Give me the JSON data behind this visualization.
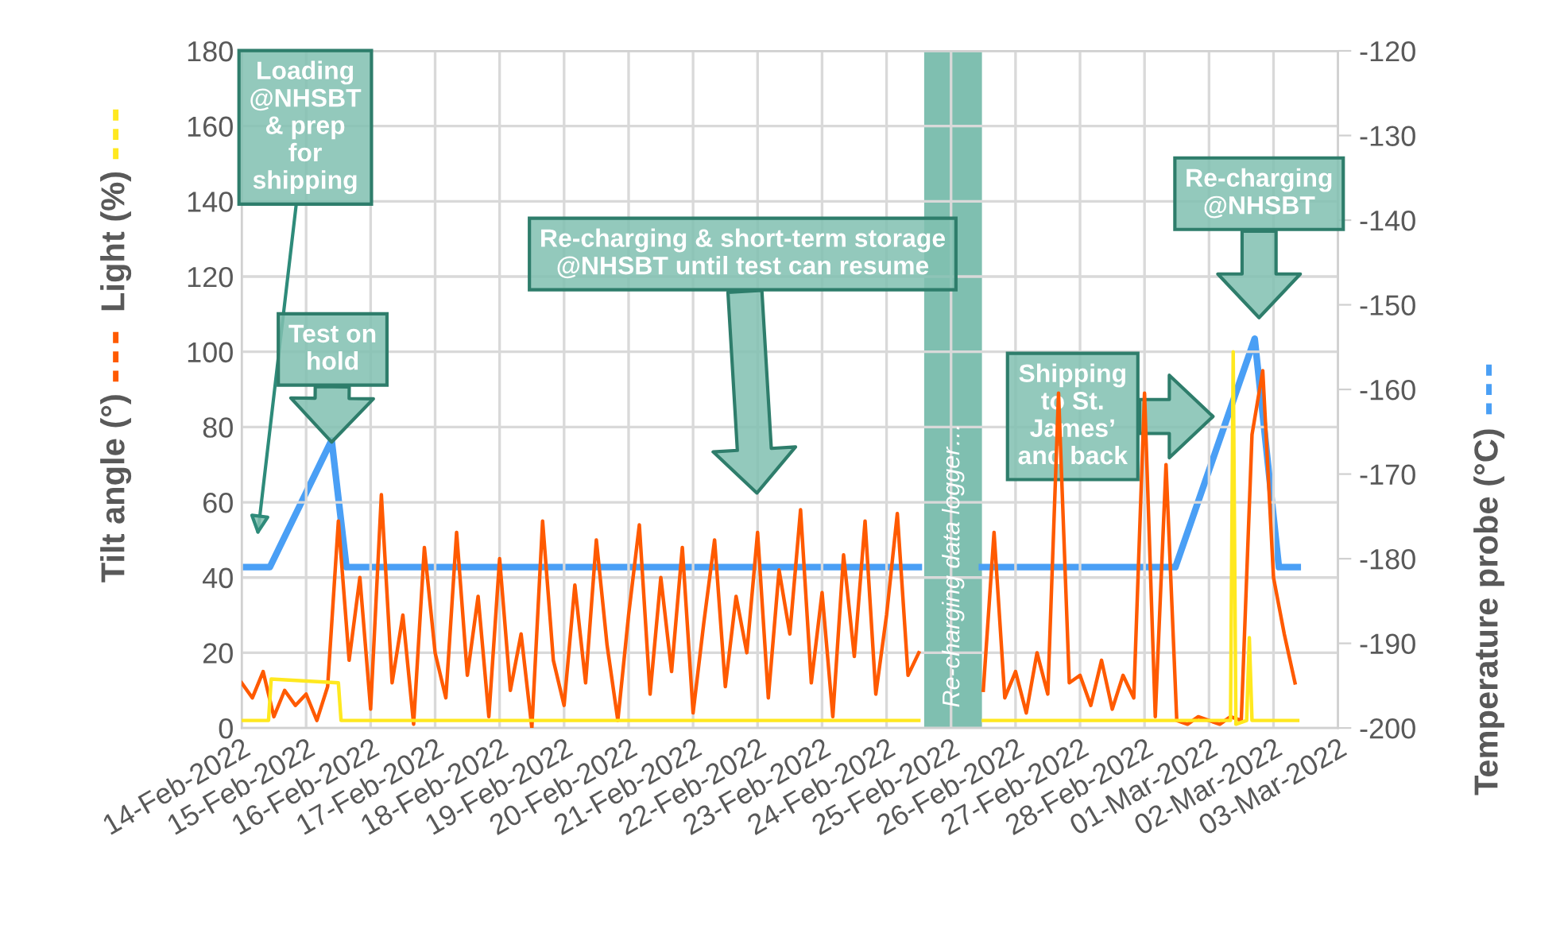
{
  "chart_data": {
    "type": "line",
    "xlim": [
      "2022-02-14",
      "2022-03-03"
    ],
    "xticks": [
      {
        "value": "2022-02-14",
        "label": "14-Feb-2022"
      },
      {
        "value": "2022-02-15",
        "label": "15-Feb-2022"
      },
      {
        "value": "2022-02-16",
        "label": "16-Feb-2022"
      },
      {
        "value": "2022-02-17",
        "label": "17-Feb-2022"
      },
      {
        "value": "2022-02-18",
        "label": "18-Feb-2022"
      },
      {
        "value": "2022-02-19",
        "label": "19-Feb-2022"
      },
      {
        "value": "2022-02-20",
        "label": "20-Feb-2022"
      },
      {
        "value": "2022-02-21",
        "label": "21-Feb-2022"
      },
      {
        "value": "2022-02-22",
        "label": "22-Feb-2022"
      },
      {
        "value": "2022-02-23",
        "label": "23-Feb-2022"
      },
      {
        "value": "2022-02-24",
        "label": "24-Feb-2022"
      },
      {
        "value": "2022-02-25",
        "label": "25-Feb-2022"
      },
      {
        "value": "2022-02-26",
        "label": "26-Feb-2022"
      },
      {
        "value": "2022-02-27",
        "label": "27-Feb-2022"
      },
      {
        "value": "2022-02-28",
        "label": "28-Feb-2022"
      },
      {
        "value": "2022-03-01",
        "label": "01-Mar-2022"
      },
      {
        "value": "2022-03-02",
        "label": "02-Mar-2022"
      },
      {
        "value": "2022-03-03",
        "label": "03-Mar-2022"
      }
    ],
    "ylim": [
      0,
      180
    ],
    "yticks": [
      0,
      20,
      40,
      60,
      80,
      100,
      120,
      140,
      160,
      180
    ],
    "y2lim": [
      -200,
      -120
    ],
    "y2ticks": [
      -200,
      -190,
      -180,
      -170,
      -160,
      -150,
      -140,
      -130,
      -120
    ],
    "grid": true,
    "legend": "left",
    "line_style": "solid",
    "marker": "none",
    "series": [
      {
        "name": "Tilt angle (°)",
        "color": "#ff5a00",
        "x": [
          "2022-02-14T00:00",
          "2022-02-14T04:00",
          "2022-02-14T08:00",
          "2022-02-14T12:00",
          "2022-02-14T16:00",
          "2022-02-14T20:00",
          "2022-02-15T00:00",
          "2022-02-15T04:00",
          "2022-02-15T08:00",
          "2022-02-15T12:00",
          "2022-02-15T16:00",
          "2022-02-15T20:00",
          "2022-02-16T00:00",
          "2022-02-16T04:00",
          "2022-02-16T08:00",
          "2022-02-16T12:00",
          "2022-02-16T16:00",
          "2022-02-16T20:00",
          "2022-02-17T00:00",
          "2022-02-17T04:00",
          "2022-02-17T08:00",
          "2022-02-17T12:00",
          "2022-02-17T16:00",
          "2022-02-17T20:00",
          "2022-02-18T00:00",
          "2022-02-18T04:00",
          "2022-02-18T08:00",
          "2022-02-18T12:00",
          "2022-02-18T16:00",
          "2022-02-18T20:00",
          "2022-02-19T00:00",
          "2022-02-19T04:00",
          "2022-02-19T08:00",
          "2022-02-19T12:00",
          "2022-02-19T16:00",
          "2022-02-19T20:00",
          "2022-02-20T00:00",
          "2022-02-20T04:00",
          "2022-02-20T08:00",
          "2022-02-20T12:00",
          "2022-02-20T16:00",
          "2022-02-20T20:00",
          "2022-02-21T00:00",
          "2022-02-21T04:00",
          "2022-02-21T08:00",
          "2022-02-21T12:00",
          "2022-02-21T16:00",
          "2022-02-21T20:00",
          "2022-02-22T00:00",
          "2022-02-22T04:00",
          "2022-02-22T08:00",
          "2022-02-22T12:00",
          "2022-02-22T16:00",
          "2022-02-22T20:00",
          "2022-02-23T00:00",
          "2022-02-23T04:00",
          "2022-02-23T08:00",
          "2022-02-23T12:00",
          "2022-02-23T16:00",
          "2022-02-23T20:00",
          "2022-02-24T00:00",
          "2022-02-24T04:00",
          "2022-02-24T08:00",
          "2022-02-24T12:00",
          "2022-02-25T00:00",
          "2022-02-25T12:00",
          "2022-02-25T16:00",
          "2022-02-25T20:00",
          "2022-02-26T00:00",
          "2022-02-26T04:00",
          "2022-02-26T08:00",
          "2022-02-26T12:00",
          "2022-02-26T16:00",
          "2022-02-26T20:00",
          "2022-02-27T00:00",
          "2022-02-27T04:00",
          "2022-02-27T08:00",
          "2022-02-27T12:00",
          "2022-02-27T16:00",
          "2022-02-27T20:00",
          "2022-02-28T00:00",
          "2022-02-28T04:00",
          "2022-02-28T08:00",
          "2022-02-28T12:00",
          "2022-02-28T16:00",
          "2022-02-28T20:00",
          "2022-03-01T00:00",
          "2022-03-01T04:00",
          "2022-03-01T08:00",
          "2022-03-01T12:00",
          "2022-03-01T16:00",
          "2022-03-01T20:00",
          "2022-03-02T00:00",
          "2022-03-02T04:00",
          "2022-03-02T08:00"
        ],
        "values": [
          12,
          8,
          15,
          3,
          10,
          6,
          9,
          2,
          11,
          55,
          18,
          40,
          5,
          62,
          12,
          30,
          1,
          48,
          20,
          8,
          52,
          14,
          35,
          3,
          45,
          10,
          25,
          0,
          55,
          18,
          6,
          38,
          12,
          50,
          22,
          2,
          30,
          54,
          9,
          40,
          15,
          48,
          4,
          28,
          50,
          11,
          35,
          20,
          52,
          8,
          42,
          25,
          58,
          12,
          36,
          3,
          46,
          19,
          55,
          9,
          30,
          57,
          14,
          20,
          null,
          10,
          52,
          8,
          15,
          4,
          20,
          9,
          89,
          12,
          14,
          6,
          18,
          5,
          14,
          8,
          89,
          3,
          70,
          2,
          1,
          3,
          2,
          1,
          3,
          2,
          78,
          95,
          40,
          25,
          12
        ]
      },
      {
        "name": "Light (%)",
        "color": "#ffe81f",
        "x": [
          "2022-02-14T00:00",
          "2022-02-14T10:00",
          "2022-02-14T11:00",
          "2022-02-15T12:00",
          "2022-02-15T13:00",
          "2022-02-24T12:00",
          "2022-02-25T00:00",
          "2022-02-25T12:00",
          "2022-03-01T08:00",
          "2022-03-01T09:00",
          "2022-03-01T10:00",
          "2022-03-01T14:00",
          "2022-03-01T15:00",
          "2022-03-01T16:00",
          "2022-03-02T09:00"
        ],
        "values": [
          2,
          2,
          13,
          12,
          2,
          2,
          null,
          2,
          2,
          100,
          1,
          2,
          24,
          2,
          2
        ]
      },
      {
        "name": "Temperature probe (°C)",
        "color": "#4a9ff5",
        "axis": "y2",
        "x": [
          "2022-02-14T00:00",
          "2022-02-14T10:30",
          "2022-02-15T09:30",
          "2022-02-15T15:00",
          "2022-02-24T12:00",
          "2022-02-25T00:00",
          "2022-02-25T11:30",
          "2022-02-28T11:30",
          "2022-03-01T17:00",
          "2022-03-02T02:00",
          "2022-03-02T09:00"
        ],
        "values": [
          -181,
          -181,
          -166,
          -181,
          -181,
          null,
          -181,
          -181,
          -154,
          -181,
          -181
        ]
      }
    ],
    "bands": [
      {
        "axis": "x",
        "from": "2022-02-24T14:00",
        "to": "2022-02-25T11:30",
        "label": "Re-charging data logger…",
        "color": "#7fbfb0"
      }
    ],
    "annotations": [
      "Loading\n@NHSBT\n& prep\nfor\nshipping",
      {
        "text": "Test on\nhold",
        "x": "2022-02-15T09:30",
        "y": 76
      },
      "Re-charging & short-term storage\n@NHSBT until test can resume",
      "Shipping\nto St.\nJames’\nand back",
      "Re-charging\n@NHSBT"
    ]
  }
}
